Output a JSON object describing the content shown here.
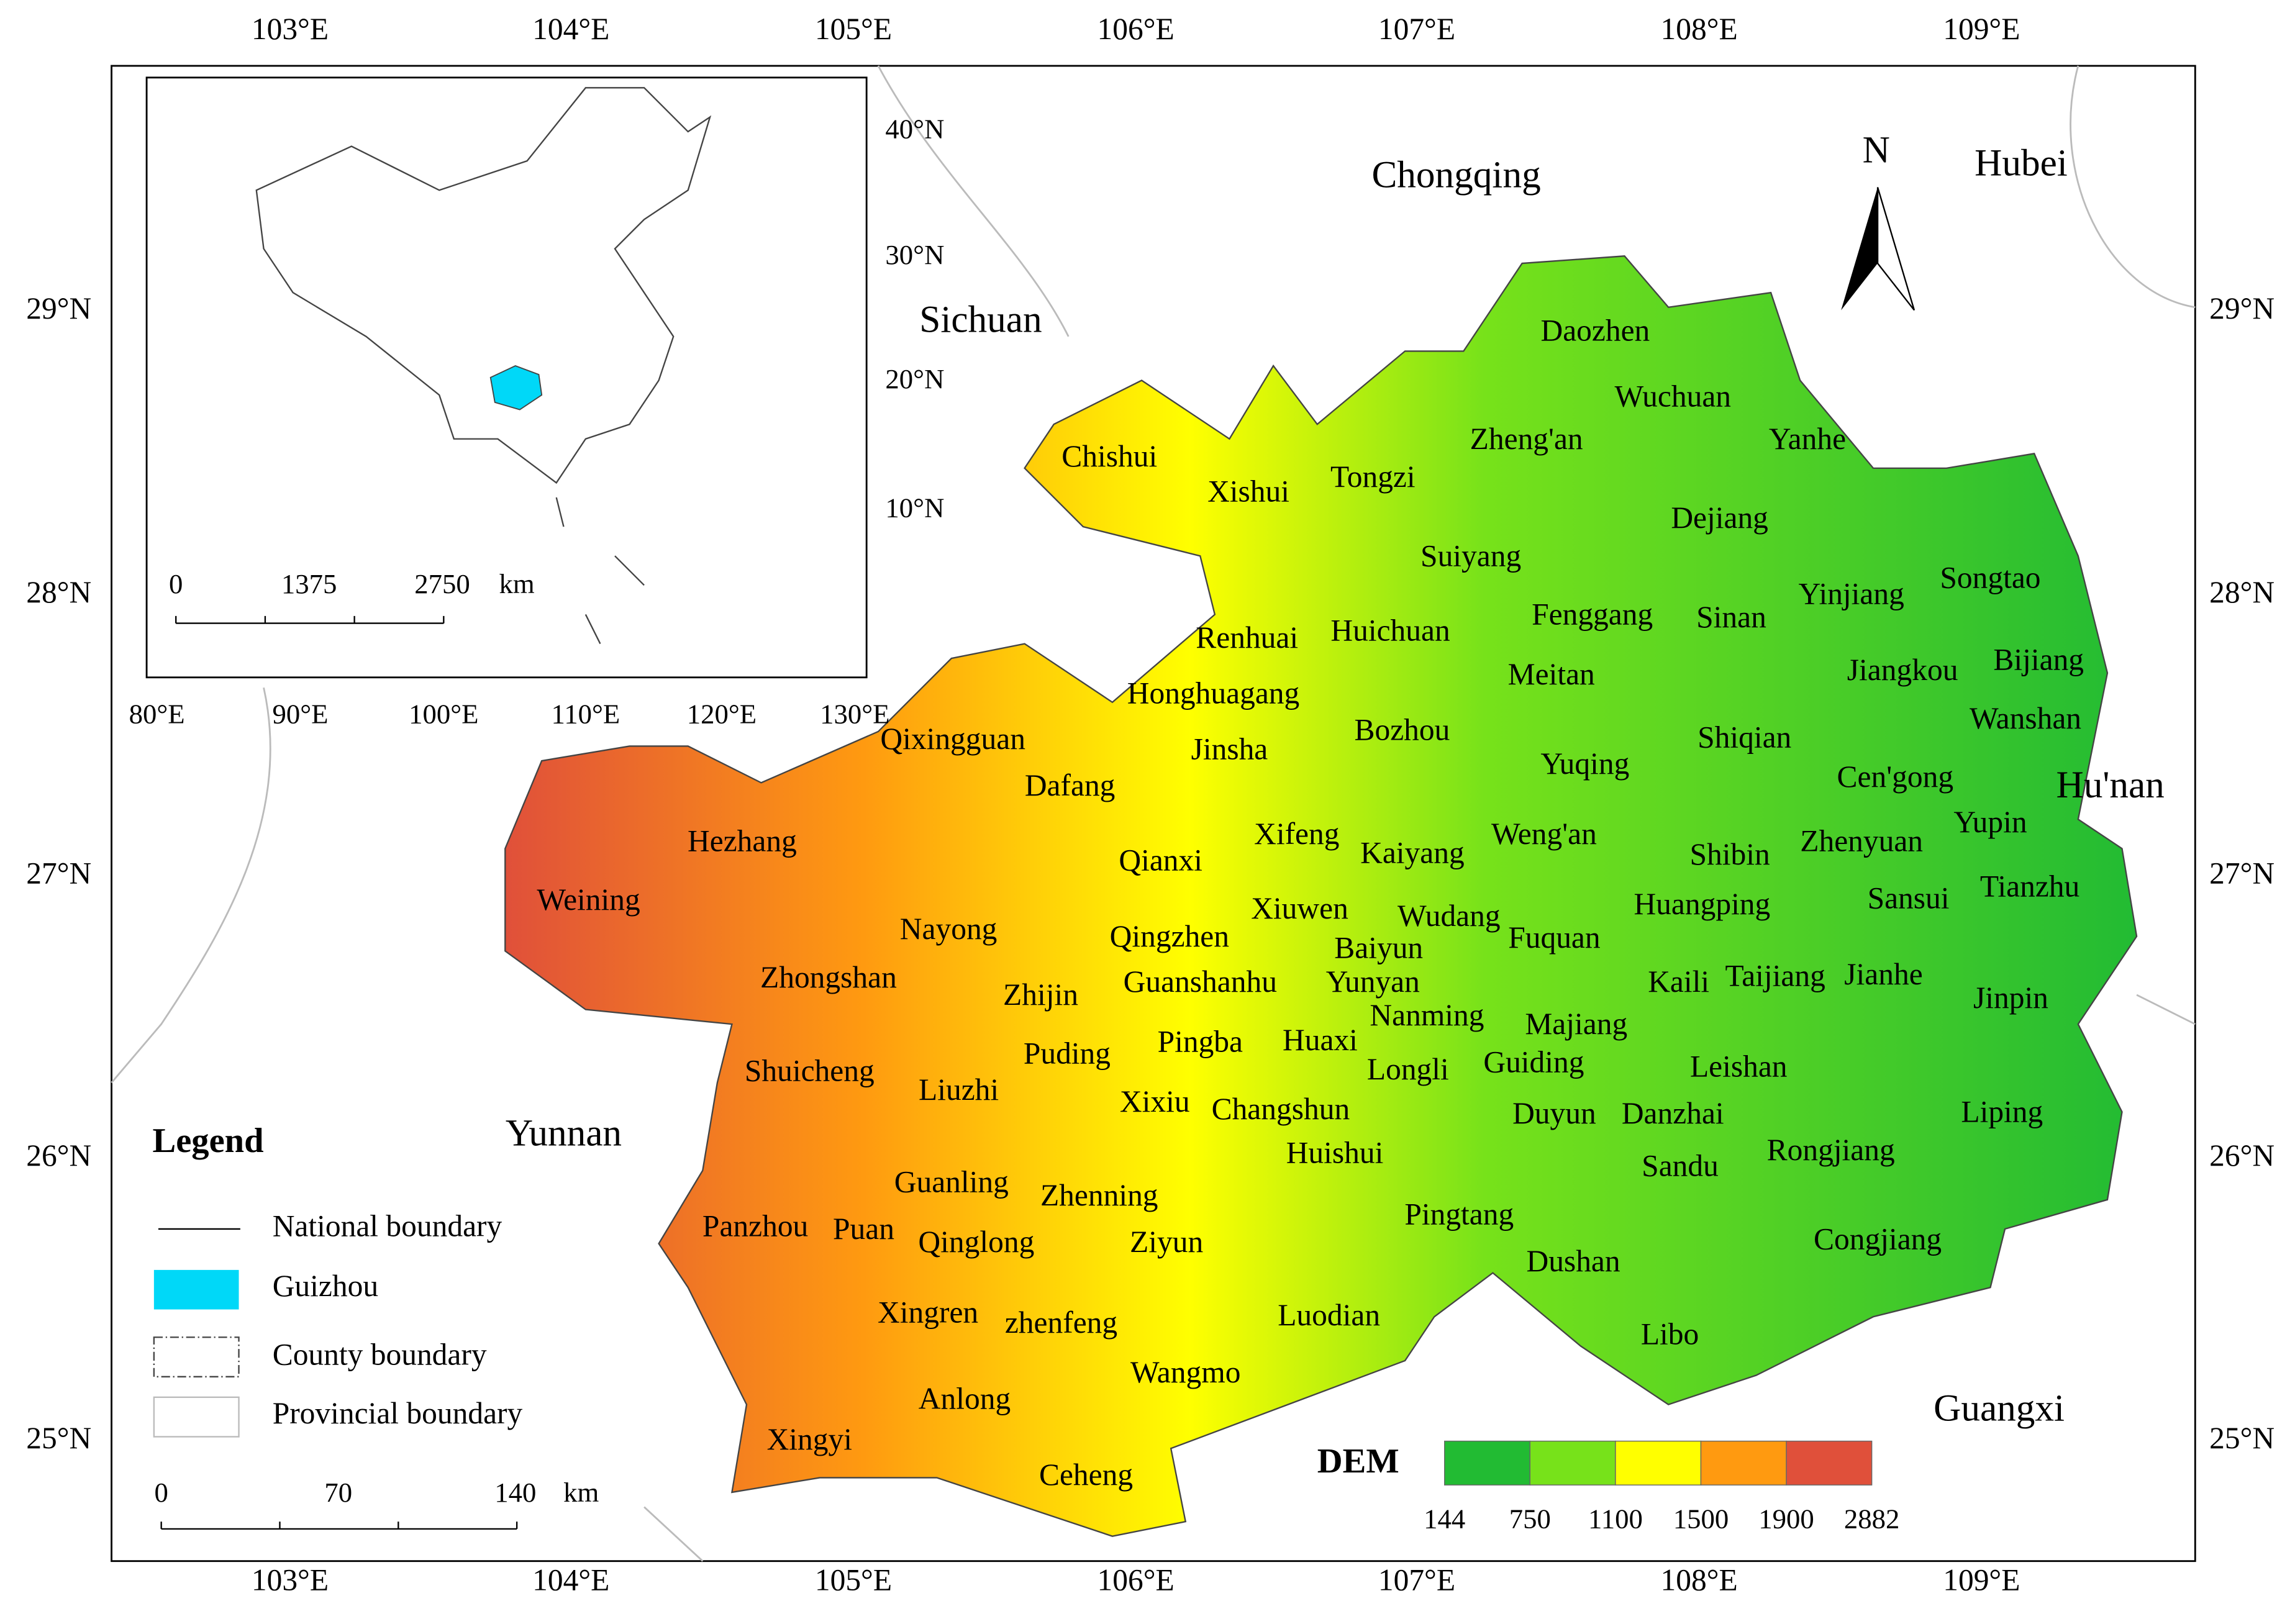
{
  "map": {
    "north": "N",
    "lon_labels": [
      "103°E",
      "104°E",
      "105°E",
      "106°E",
      "107°E",
      "108°E",
      "109°E"
    ],
    "lat_labels": [
      "29°N",
      "28°N",
      "27°N",
      "26°N",
      "25°N"
    ],
    "provinces": [
      "Chongqing",
      "Hubei",
      "Sichuan",
      "Hu'nan",
      "Yunnan",
      "Guangxi"
    ],
    "counties": [
      "Daozhen",
      "Wuchuan",
      "Zheng'an",
      "Yanhe",
      "Chishui",
      "Xishui",
      "Tongzi",
      "Dejiang",
      "Suiyang",
      "Songtao",
      "Yinjiang",
      "Fenggang",
      "Sinan",
      "Renhuai",
      "Huichuan",
      "Jiangkou",
      "Bijiang",
      "Meitan",
      "Honghuagang",
      "Wanshan",
      "Bozhou",
      "Qixingguan",
      "Shiqian",
      "Jinsha",
      "Yuqing",
      "Cen'gong",
      "Dafang",
      "Yupin",
      "Xifeng",
      "Weng'an",
      "Zhenyuan",
      "Hezhang",
      "Kaiyang",
      "Qianxi",
      "Shibin",
      "Weining",
      "Tianzhu",
      "Sansui",
      "Xiuwen",
      "Wudang",
      "Huangping",
      "Nayong",
      "Fuquan",
      "Qingzhen",
      "Baiyun",
      "Zhongshan",
      "Guanshanhu",
      "Yunyan",
      "Kaili",
      "Taijiang",
      "Jianhe",
      "Jinpin",
      "Zhijin",
      "Nanming",
      "Majiang",
      "Pingba",
      "Huaxi",
      "Puding",
      "Longli",
      "Guiding",
      "Leishan",
      "Shuicheng",
      "Liuzhi",
      "Xixiu",
      "Changshun",
      "Duyun",
      "Danzhai",
      "Liping",
      "Huishui",
      "Sandu",
      "Rongjiang",
      "Guanling",
      "Zhenning",
      "Pingtang",
      "Panzhou",
      "Puan",
      "Qinglong",
      "Ziyun",
      "Congjiang",
      "Dushan",
      "Xingren",
      "zhenfeng",
      "Luodian",
      "Libo",
      "Wangmo",
      "Anlong",
      "Xingyi",
      "Ceheng"
    ],
    "inset": {
      "lat_labels": [
        "40°N",
        "30°N",
        "20°N",
        "10°N"
      ],
      "lon_labels": [
        "80°E",
        "90°E",
        "100°E",
        "110°E",
        "120°E",
        "130°E"
      ],
      "scale_labels": [
        "0",
        "1375",
        "2750"
      ],
      "scale_unit": "km",
      "highlight_color": "#00d8f8"
    },
    "legend": {
      "title": "Legend",
      "items": [
        "National boundary",
        "Guizhou",
        "County boundary",
        "Provincial boundary"
      ],
      "scale_labels": [
        "0",
        "70",
        "140"
      ],
      "scale_unit": "km"
    },
    "dem": {
      "title": "DEM",
      "breaks": [
        144,
        750,
        1100,
        1500,
        1900,
        2882
      ],
      "colors": [
        "#22bb33",
        "#77e21a",
        "#ffff00",
        "#ff9a10",
        "#e0503a"
      ]
    }
  }
}
